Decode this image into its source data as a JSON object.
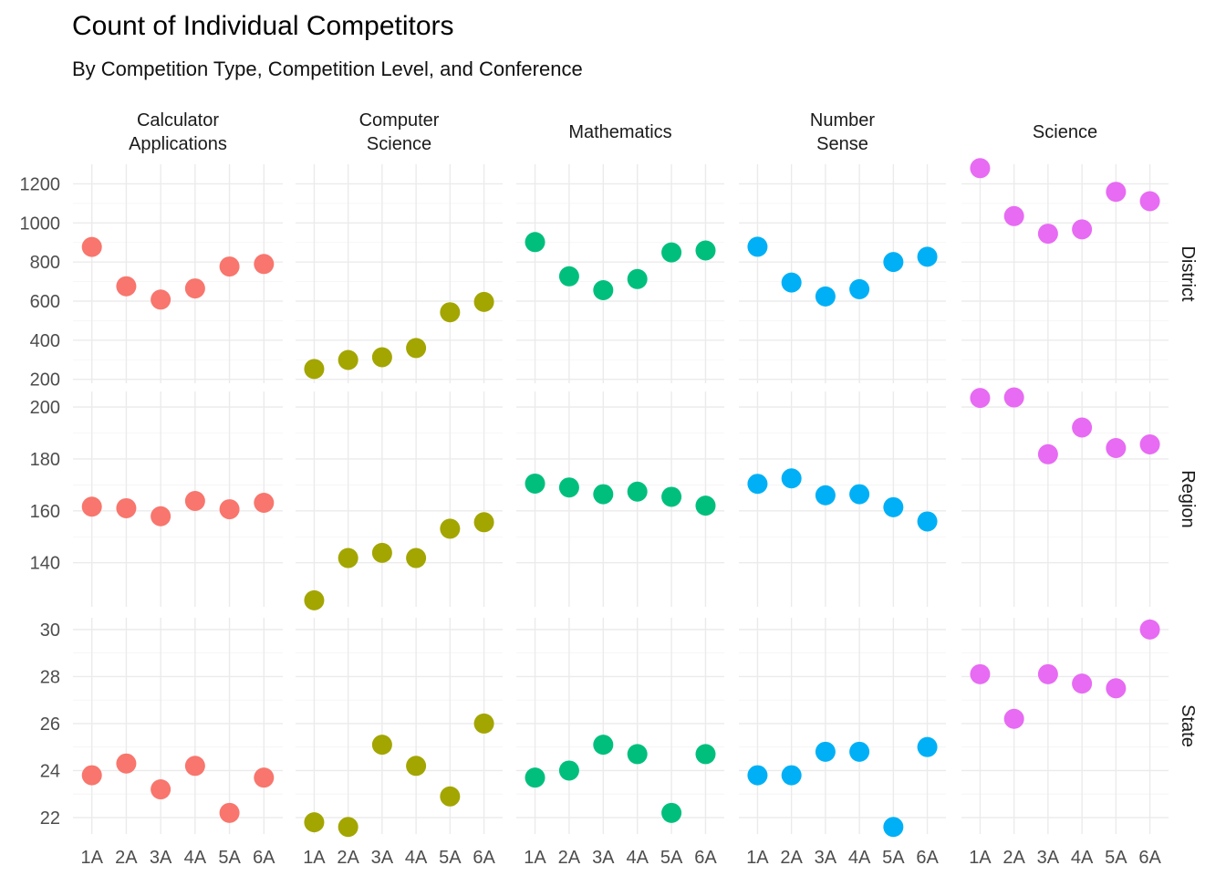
{
  "chart_data": {
    "type": "scatter",
    "title": "Count of Individual Competitors",
    "subtitle": "By Competition Type, Competition Level, and Conference",
    "x_categories": [
      "1A",
      "2A",
      "3A",
      "4A",
      "5A",
      "6A"
    ],
    "grid": true,
    "legend": "none",
    "columns": [
      {
        "key": "calc",
        "label_lines": [
          "Calculator",
          "Applications"
        ],
        "color": "#F8766D"
      },
      {
        "key": "cs",
        "label_lines": [
          "Computer",
          "Science"
        ],
        "color": "#A3A500"
      },
      {
        "key": "math",
        "label_lines": [
          "Mathematics"
        ],
        "color": "#00BF7D"
      },
      {
        "key": "ns",
        "label_lines": [
          "Number",
          "Sense"
        ],
        "color": "#00B0F6"
      },
      {
        "key": "sci",
        "label_lines": [
          "Science"
        ],
        "color": "#E76BF3"
      }
    ],
    "rows": [
      {
        "key": "district",
        "label": "District",
        "ylim": [
          180,
          1300
        ],
        "y_ticks": [
          200,
          400,
          600,
          800,
          1000,
          1200
        ],
        "y_tick_labels": [
          "200",
          "400",
          "600",
          "800",
          "1000",
          "1200"
        ],
        "values": {
          "calc": [
            877,
            676,
            608,
            665,
            777,
            790
          ],
          "cs": [
            253,
            299,
            313,
            360,
            543,
            596
          ],
          "math": [
            902,
            727,
            656,
            713,
            849,
            859
          ],
          "ns": [
            878,
            695,
            624,
            661,
            800,
            827
          ],
          "sci": [
            1280,
            1035,
            945,
            967,
            1159,
            1111
          ]
        }
      },
      {
        "key": "region",
        "label": "Region",
        "ylim": [
          123,
          206
        ],
        "y_ticks": [
          140,
          160,
          180,
          200
        ],
        "y_tick_labels": [
          "140",
          "160",
          "180",
          "200"
        ],
        "values": {
          "calc": [
            161.6,
            161.0,
            157.9,
            163.8,
            160.6,
            163.1
          ],
          "cs": [
            125.5,
            141.8,
            143.8,
            141.8,
            153.1,
            155.6
          ],
          "math": [
            170.5,
            169.0,
            166.4,
            167.4,
            165.4,
            162.0
          ],
          "ns": [
            170.4,
            172.5,
            166.0,
            166.4,
            161.4,
            155.9
          ],
          "sci": [
            203.5,
            203.7,
            181.8,
            192.1,
            184.2,
            185.6
          ]
        }
      },
      {
        "key": "state",
        "label": "State",
        "ylim": [
          21.3,
          30.5
        ],
        "y_ticks": [
          22,
          24,
          26,
          28,
          30
        ],
        "y_tick_labels": [
          "22",
          "24",
          "26",
          "28",
          "30"
        ],
        "values": {
          "calc": [
            23.8,
            24.3,
            23.2,
            24.2,
            22.2,
            23.7
          ],
          "cs": [
            21.8,
            21.6,
            25.1,
            24.2,
            22.9,
            26.0
          ],
          "math": [
            23.7,
            24.0,
            25.1,
            24.7,
            22.2,
            24.7
          ],
          "ns": [
            23.8,
            23.8,
            24.8,
            24.8,
            21.6,
            25.0
          ],
          "sci": [
            28.1,
            26.2,
            28.1,
            27.7,
            27.5,
            30.0
          ]
        }
      }
    ]
  }
}
